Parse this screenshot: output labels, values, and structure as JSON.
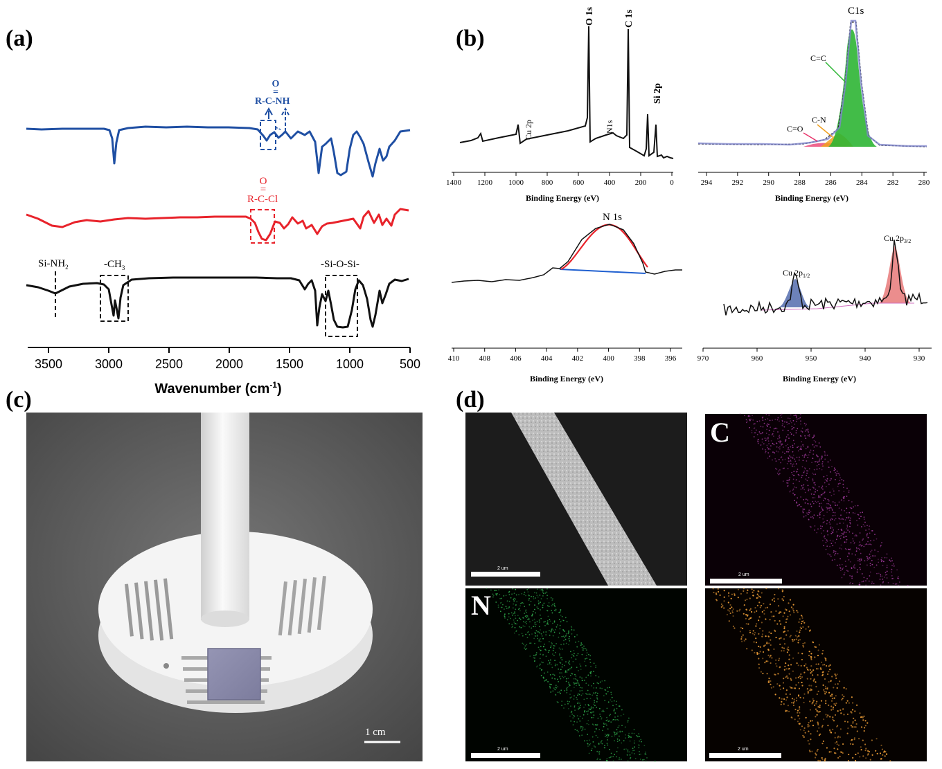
{
  "panel_labels": {
    "a": "(a)",
    "b": "(b)",
    "c": "(c)",
    "d": "(d)"
  },
  "panel_a": {
    "xlabel": "Wavenumber (cm",
    "xlabel_sup": "-1",
    "xlabel_close": ")",
    "xticks": [
      "3500",
      "3000",
      "2500",
      "2000",
      "1500",
      "1000",
      "500"
    ],
    "annotations": {
      "amide_o": "O",
      "amide_eq": "=",
      "amide_formula": "R-C-NH",
      "acyl_o": "O",
      "acyl_eq": "=",
      "acyl_formula": "R-C-Cl",
      "si_nh2": "Si-NH",
      "si_nh2_sub": "2",
      "ch3": "-CH",
      "ch3_sub": "3",
      "siosi": "-Si-O-Si-"
    },
    "series_colors": [
      "#1f4fa3",
      "#e8232b",
      "#111111"
    ]
  },
  "panel_b": {
    "survey": {
      "xticks": [
        "1400",
        "1200",
        "1000",
        "800",
        "600",
        "400",
        "200",
        "0"
      ],
      "xlabel": "Binding Energy (eV)",
      "peaks": {
        "cu2p": "Cu 2p",
        "o1s": "O 1s",
        "n1s": "N1s",
        "c1s": "C 1s",
        "si2p": "Si 2p"
      }
    },
    "c1s": {
      "xticks": [
        "294",
        "292",
        "290",
        "288",
        "286",
        "284",
        "282",
        "280"
      ],
      "xlabel": "Binding Energy (eV)",
      "title": "C1s",
      "components": {
        "cc": "C=C",
        "cn": "C-N",
        "co": "C=O"
      },
      "colors": {
        "cc": "#2db534",
        "cn": "#f0a020",
        "co": "#e8336a"
      }
    },
    "n1s": {
      "xticks": [
        "410",
        "408",
        "406",
        "404",
        "402",
        "400",
        "398",
        "396"
      ],
      "xlabel": "Binding Energy (eV)",
      "title": "N 1s"
    },
    "cu2p": {
      "xticks": [
        "970",
        "960",
        "950",
        "940",
        "930"
      ],
      "xlabel": "Binding Energy (eV)",
      "p12": "Cu 2p",
      "p12_sub": "1/2",
      "p32": "Cu 2p",
      "p32_sub": "3/2"
    }
  },
  "panel_c": {
    "scale_label": "1 cm"
  },
  "panel_d": {
    "maps": {
      "c": "C",
      "n": "N"
    },
    "scale_text": "2 um"
  }
}
